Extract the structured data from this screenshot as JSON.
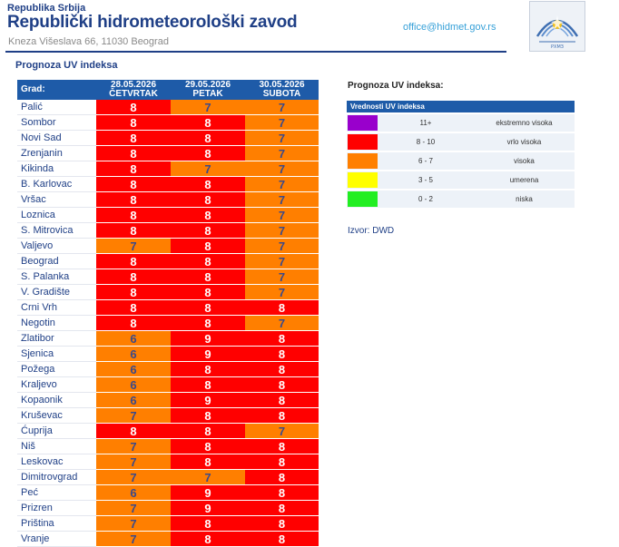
{
  "header": {
    "republic": "Republika Srbija",
    "institute": "Republički hidrometeorološki zavod",
    "address": "Kneza Višeslava 66, 11030 Beograd",
    "email": "office@hidmet.gov.rs"
  },
  "section_title": "Prognoza UV indeksa",
  "table": {
    "city_header": "Grad:",
    "columns": [
      {
        "date": "28.05.2026",
        "day": "ČETVRTAK"
      },
      {
        "date": "29.05.2026",
        "day": "PETAK"
      },
      {
        "date": "30.05.2026",
        "day": "SUBOTA"
      }
    ],
    "rows": [
      {
        "city": "Palić",
        "values": [
          8,
          7,
          7
        ]
      },
      {
        "city": "Sombor",
        "values": [
          8,
          8,
          7
        ]
      },
      {
        "city": "Novi Sad",
        "values": [
          8,
          8,
          7
        ]
      },
      {
        "city": "Zrenjanin",
        "values": [
          8,
          8,
          7
        ]
      },
      {
        "city": "Kikinda",
        "values": [
          8,
          7,
          7
        ]
      },
      {
        "city": "B. Karlovac",
        "values": [
          8,
          8,
          7
        ]
      },
      {
        "city": "Vršac",
        "values": [
          8,
          8,
          7
        ]
      },
      {
        "city": "Loznica",
        "values": [
          8,
          8,
          7
        ]
      },
      {
        "city": "S. Mitrovica",
        "values": [
          8,
          8,
          7
        ]
      },
      {
        "city": "Valjevo",
        "values": [
          7,
          8,
          7
        ]
      },
      {
        "city": "Beograd",
        "values": [
          8,
          8,
          7
        ]
      },
      {
        "city": "S. Palanka",
        "values": [
          8,
          8,
          7
        ]
      },
      {
        "city": "V. Gradište",
        "values": [
          8,
          8,
          7
        ]
      },
      {
        "city": "Crni Vrh",
        "values": [
          8,
          8,
          8
        ]
      },
      {
        "city": "Negotin",
        "values": [
          8,
          8,
          7
        ]
      },
      {
        "city": "Zlatibor",
        "values": [
          6,
          9,
          8
        ]
      },
      {
        "city": "Sjenica",
        "values": [
          6,
          9,
          8
        ]
      },
      {
        "city": "Požega",
        "values": [
          6,
          8,
          8
        ]
      },
      {
        "city": "Kraljevo",
        "values": [
          6,
          8,
          8
        ]
      },
      {
        "city": "Kopaonik",
        "values": [
          6,
          9,
          8
        ]
      },
      {
        "city": "Kruševac",
        "values": [
          7,
          8,
          8
        ]
      },
      {
        "city": "Ćuprija",
        "values": [
          8,
          8,
          7
        ]
      },
      {
        "city": "Niš",
        "values": [
          7,
          8,
          8
        ]
      },
      {
        "city": "Leskovac",
        "values": [
          7,
          8,
          8
        ]
      },
      {
        "city": "Dimitrovgrad",
        "values": [
          7,
          7,
          8
        ]
      },
      {
        "city": "Peć",
        "values": [
          6,
          9,
          8
        ]
      },
      {
        "city": "Prizren",
        "values": [
          7,
          9,
          8
        ]
      },
      {
        "city": "Priština",
        "values": [
          7,
          8,
          8
        ]
      },
      {
        "city": "Vranje",
        "values": [
          7,
          8,
          8
        ]
      }
    ]
  },
  "legend": {
    "title": "Prognoza UV indeksa:",
    "header": "Vrednosti UV indeksa",
    "items": [
      {
        "range": "11+",
        "label": "ekstremno visoka",
        "color": "#9900cc"
      },
      {
        "range": "8 - 10",
        "label": "vrlo visoka",
        "color": "#ff0000"
      },
      {
        "range": "6 - 7",
        "label": "visoka",
        "color": "#ff7f00"
      },
      {
        "range": "3 - 5",
        "label": "umerena",
        "color": "#ffff00"
      },
      {
        "range": "0 - 2",
        "label": "niska",
        "color": "#22ee22"
      }
    ]
  },
  "source": "Izvor: DWD",
  "colors": {
    "brand": "#1f3f86",
    "header_bg": "#1e5ba8",
    "email": "#36a0d8"
  }
}
